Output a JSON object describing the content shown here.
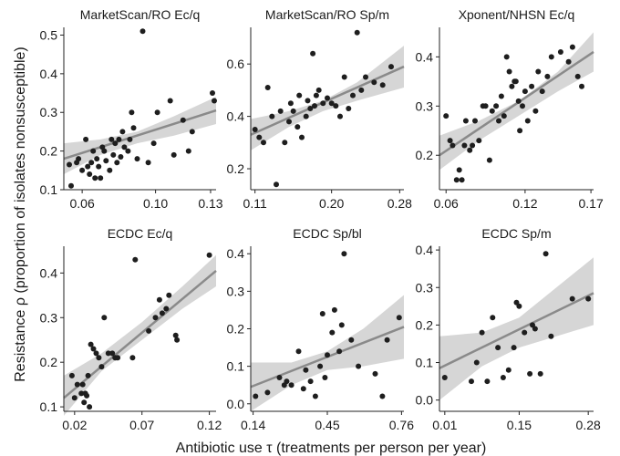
{
  "figure": {
    "ylabel": "Resistance ρ (proportion of isolates nonsusceptible)",
    "xlabel": "Antibiotic use τ (treatments per person per year)"
  },
  "colors": {
    "points": "#1e1e1e",
    "fit_line": "#8a8a8a",
    "ci_band": "#d6d6d6",
    "axis": "#222222"
  },
  "chart_data": [
    {
      "type": "scatter",
      "title": "MarketScan/RO Ec/q",
      "xlim": [
        0.05,
        0.133
      ],
      "ylim": [
        0.1,
        0.52
      ],
      "xticks": [
        0.06,
        0.1,
        0.13
      ],
      "xtick_labels": [
        "0.06",
        "0.10",
        "0.13"
      ],
      "yticks": [
        0.1,
        0.2,
        0.3,
        0.4,
        0.5
      ],
      "ytick_labels": [
        "0.1",
        "0.2",
        "0.3",
        "0.4",
        "0.5"
      ],
      "x": [
        0.053,
        0.054,
        0.057,
        0.058,
        0.06,
        0.062,
        0.063,
        0.064,
        0.065,
        0.066,
        0.067,
        0.068,
        0.069,
        0.07,
        0.071,
        0.072,
        0.073,
        0.075,
        0.076,
        0.077,
        0.078,
        0.079,
        0.08,
        0.081,
        0.082,
        0.083,
        0.085,
        0.086,
        0.087,
        0.088,
        0.09,
        0.093,
        0.096,
        0.099,
        0.101,
        0.108,
        0.11,
        0.115,
        0.118,
        0.12,
        0.131,
        0.132
      ],
      "y": [
        0.165,
        0.11,
        0.17,
        0.18,
        0.15,
        0.23,
        0.16,
        0.14,
        0.17,
        0.2,
        0.13,
        0.18,
        0.16,
        0.13,
        0.21,
        0.2,
        0.175,
        0.15,
        0.23,
        0.19,
        0.22,
        0.17,
        0.23,
        0.185,
        0.25,
        0.21,
        0.2,
        0.23,
        0.3,
        0.26,
        0.18,
        0.51,
        0.17,
        0.22,
        0.3,
        0.33,
        0.19,
        0.28,
        0.2,
        0.25,
        0.35,
        0.33
      ],
      "fit": {
        "x": [
          0.05,
          0.133
        ],
        "y": [
          0.18,
          0.305
        ]
      },
      "ci": {
        "x": [
          0.05,
          0.07,
          0.09,
          0.11,
          0.133
        ],
        "lower": [
          0.14,
          0.19,
          0.22,
          0.24,
          0.27
        ],
        "upper": [
          0.22,
          0.23,
          0.25,
          0.29,
          0.34
        ]
      }
    },
    {
      "type": "scatter",
      "title": "MarketScan/RO Sp/m",
      "xlim": [
        0.105,
        0.285
      ],
      "ylim": [
        0.12,
        0.74
      ],
      "xticks": [
        0.11,
        0.2,
        0.28
      ],
      "xtick_labels": [
        "0.11",
        "0.20",
        "0.28"
      ],
      "yticks": [
        0.2,
        0.4,
        0.6
      ],
      "ytick_labels": [
        "0.2",
        "0.4",
        "0.6"
      ],
      "x": [
        0.11,
        0.115,
        0.12,
        0.125,
        0.13,
        0.135,
        0.14,
        0.145,
        0.15,
        0.152,
        0.155,
        0.16,
        0.162,
        0.165,
        0.17,
        0.172,
        0.175,
        0.178,
        0.18,
        0.182,
        0.185,
        0.19,
        0.195,
        0.2,
        0.205,
        0.21,
        0.215,
        0.22,
        0.225,
        0.23,
        0.235,
        0.24,
        0.25,
        0.26,
        0.27
      ],
      "y": [
        0.35,
        0.32,
        0.3,
        0.51,
        0.4,
        0.14,
        0.42,
        0.3,
        0.38,
        0.45,
        0.42,
        0.36,
        0.48,
        0.32,
        0.4,
        0.46,
        0.43,
        0.64,
        0.44,
        0.48,
        0.5,
        0.45,
        0.47,
        0.45,
        0.44,
        0.4,
        0.55,
        0.43,
        0.48,
        0.72,
        0.5,
        0.55,
        0.53,
        0.52,
        0.59
      ],
      "fit": {
        "x": [
          0.105,
          0.285
        ],
        "y": [
          0.33,
          0.59
        ]
      },
      "ci": {
        "x": [
          0.105,
          0.15,
          0.19,
          0.23,
          0.285
        ],
        "lower": [
          0.27,
          0.36,
          0.42,
          0.46,
          0.51
        ],
        "upper": [
          0.39,
          0.42,
          0.46,
          0.53,
          0.67
        ]
      }
    },
    {
      "type": "scatter",
      "title": "Xponent/NHSN Ec/q",
      "xlim": [
        0.055,
        0.172
      ],
      "ylim": [
        0.13,
        0.46
      ],
      "xticks": [
        0.06,
        0.12,
        0.17
      ],
      "xtick_labels": [
        "0.06",
        "0.12",
        "0.17"
      ],
      "yticks": [
        0.2,
        0.3,
        0.4
      ],
      "ytick_labels": [
        "0.2",
        "0.3",
        "0.4"
      ],
      "x": [
        0.06,
        0.063,
        0.065,
        0.068,
        0.07,
        0.072,
        0.074,
        0.075,
        0.078,
        0.08,
        0.082,
        0.085,
        0.088,
        0.09,
        0.093,
        0.095,
        0.098,
        0.1,
        0.102,
        0.104,
        0.106,
        0.108,
        0.11,
        0.112,
        0.113,
        0.115,
        0.116,
        0.118,
        0.12,
        0.122,
        0.125,
        0.128,
        0.13,
        0.133,
        0.137,
        0.14,
        0.147,
        0.153,
        0.156,
        0.16,
        0.163
      ],
      "y": [
        0.28,
        0.23,
        0.22,
        0.15,
        0.17,
        0.15,
        0.22,
        0.27,
        0.21,
        0.22,
        0.27,
        0.23,
        0.3,
        0.3,
        0.19,
        0.29,
        0.3,
        0.27,
        0.32,
        0.28,
        0.4,
        0.37,
        0.34,
        0.35,
        0.35,
        0.31,
        0.25,
        0.3,
        0.33,
        0.27,
        0.34,
        0.29,
        0.37,
        0.33,
        0.36,
        0.4,
        0.41,
        0.39,
        0.42,
        0.36,
        0.34
      ],
      "fit": {
        "x": [
          0.055,
          0.172
        ],
        "y": [
          0.2,
          0.41
        ]
      },
      "ci": {
        "x": [
          0.055,
          0.085,
          0.115,
          0.145,
          0.172
        ],
        "lower": [
          0.17,
          0.23,
          0.28,
          0.33,
          0.37
        ],
        "upper": [
          0.24,
          0.27,
          0.31,
          0.37,
          0.45
        ]
      }
    },
    {
      "type": "scatter",
      "title": "ECDC Ec/q",
      "xlim": [
        0.012,
        0.125
      ],
      "ylim": [
        0.09,
        0.46
      ],
      "xticks": [
        0.02,
        0.07,
        0.12
      ],
      "xtick_labels": [
        "0.02",
        "0.07",
        "0.12"
      ],
      "yticks": [
        0.1,
        0.2,
        0.3,
        0.4
      ],
      "ytick_labels": [
        "0.1",
        "0.2",
        "0.3",
        "0.4"
      ],
      "x": [
        0.018,
        0.02,
        0.022,
        0.025,
        0.026,
        0.027,
        0.028,
        0.029,
        0.03,
        0.031,
        0.032,
        0.034,
        0.036,
        0.038,
        0.04,
        0.042,
        0.045,
        0.048,
        0.05,
        0.052,
        0.063,
        0.065,
        0.075,
        0.08,
        0.083,
        0.085,
        0.088,
        0.09,
        0.095,
        0.096,
        0.12
      ],
      "y": [
        0.17,
        0.12,
        0.15,
        0.13,
        0.15,
        0.11,
        0.13,
        0.125,
        0.17,
        0.1,
        0.24,
        0.23,
        0.22,
        0.21,
        0.19,
        0.3,
        0.22,
        0.22,
        0.21,
        0.21,
        0.21,
        0.43,
        0.27,
        0.3,
        0.34,
        0.31,
        0.32,
        0.35,
        0.26,
        0.25,
        0.44
      ],
      "fit": {
        "x": [
          0.012,
          0.125
        ],
        "y": [
          0.12,
          0.405
        ]
      },
      "ci": {
        "x": [
          0.012,
          0.04,
          0.07,
          0.1,
          0.125
        ],
        "lower": [
          0.08,
          0.18,
          0.25,
          0.32,
          0.37
        ],
        "upper": [
          0.17,
          0.22,
          0.29,
          0.37,
          0.44
        ]
      }
    },
    {
      "type": "scatter",
      "title": "ECDC Sp/bl",
      "xlim": [
        0.13,
        0.77
      ],
      "ylim": [
        -0.02,
        0.42
      ],
      "xticks": [
        0.14,
        0.45,
        0.76
      ],
      "xtick_labels": [
        "0.14",
        "0.45",
        "0.76"
      ],
      "yticks": [
        0.0,
        0.1,
        0.2,
        0.3,
        0.4
      ],
      "ytick_labels": [
        "0.0",
        "0.1",
        "0.2",
        "0.3",
        "0.4"
      ],
      "x": [
        0.15,
        0.2,
        0.25,
        0.27,
        0.28,
        0.3,
        0.33,
        0.35,
        0.36,
        0.38,
        0.4,
        0.42,
        0.43,
        0.44,
        0.45,
        0.47,
        0.48,
        0.5,
        0.51,
        0.52,
        0.55,
        0.58,
        0.65,
        0.68,
        0.7,
        0.75
      ],
      "y": [
        0.02,
        0.03,
        0.07,
        0.05,
        0.06,
        0.05,
        0.14,
        0.04,
        0.09,
        0.06,
        0.02,
        0.1,
        0.24,
        0.07,
        0.13,
        0.19,
        0.25,
        0.14,
        0.21,
        0.4,
        0.17,
        0.1,
        0.08,
        0.02,
        0.17,
        0.23
      ],
      "fit": {
        "x": [
          0.13,
          0.77
        ],
        "y": [
          0.045,
          0.205
        ]
      },
      "ci": {
        "x": [
          0.13,
          0.3,
          0.45,
          0.6,
          0.77
        ],
        "lower": [
          -0.02,
          0.05,
          0.09,
          0.1,
          0.12
        ],
        "upper": [
          0.11,
          0.11,
          0.14,
          0.2,
          0.29
        ]
      }
    },
    {
      "type": "scatter",
      "title": "ECDC Sp/m",
      "xlim": [
        0.0,
        0.29
      ],
      "ylim": [
        -0.03,
        0.41
      ],
      "xticks": [
        0.01,
        0.15,
        0.28
      ],
      "xtick_labels": [
        "0.01",
        "0.15",
        "0.28"
      ],
      "yticks": [
        0.0,
        0.1,
        0.2,
        0.3,
        0.4
      ],
      "ytick_labels": [
        "0.0",
        "0.1",
        "0.2",
        "0.3",
        "0.4"
      ],
      "x": [
        0.01,
        0.06,
        0.07,
        0.08,
        0.09,
        0.1,
        0.11,
        0.12,
        0.13,
        0.14,
        0.145,
        0.15,
        0.16,
        0.17,
        0.175,
        0.18,
        0.19,
        0.2,
        0.21,
        0.25,
        0.28
      ],
      "y": [
        0.06,
        0.05,
        0.1,
        0.18,
        0.05,
        0.22,
        0.14,
        0.06,
        0.08,
        0.14,
        0.26,
        0.25,
        0.18,
        0.07,
        0.2,
        0.19,
        0.07,
        0.39,
        0.17,
        0.27,
        0.27
      ],
      "fit": {
        "x": [
          0.0,
          0.29
        ],
        "y": [
          0.085,
          0.285
        ]
      },
      "ci": {
        "x": [
          0.0,
          0.08,
          0.15,
          0.22,
          0.29
        ],
        "lower": [
          0.0,
          0.09,
          0.14,
          0.17,
          0.2
        ],
        "upper": [
          0.17,
          0.18,
          0.22,
          0.3,
          0.38
        ]
      }
    }
  ]
}
